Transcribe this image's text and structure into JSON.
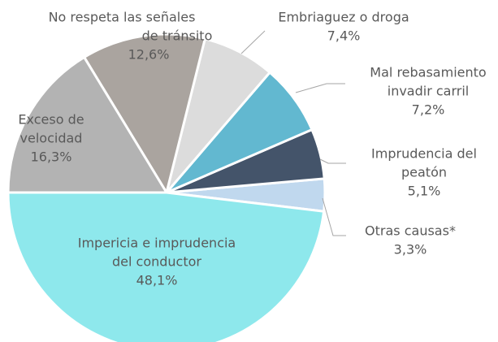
{
  "chart_data": {
    "type": "pie",
    "categories": [
      [
        "Impericia e imprudencia",
        "del conductor"
      ],
      [
        "Exceso de",
        "velocidad"
      ],
      [
        "No respeta las señales",
        "de tránsito"
      ],
      [
        "Embriaguez o droga"
      ],
      [
        "Mal rebasamiento",
        "invadir carril"
      ],
      [
        "Imprudencia del",
        "peatón"
      ],
      [
        "Otras causas*"
      ]
    ],
    "values": [
      48.1,
      16.3,
      12.6,
      7.4,
      7.2,
      5.1,
      3.3
    ],
    "value_labels": [
      "48,1%",
      "16,3%",
      "12,6%",
      "7,4%",
      "7,2%",
      "5,1%",
      "3,3%"
    ],
    "colors": [
      "#8ee8ec",
      "#b3b3b3",
      "#aaa49f",
      "#dcdcdc",
      "#62b8d0",
      "#44546a",
      "#c0d8ee"
    ]
  }
}
